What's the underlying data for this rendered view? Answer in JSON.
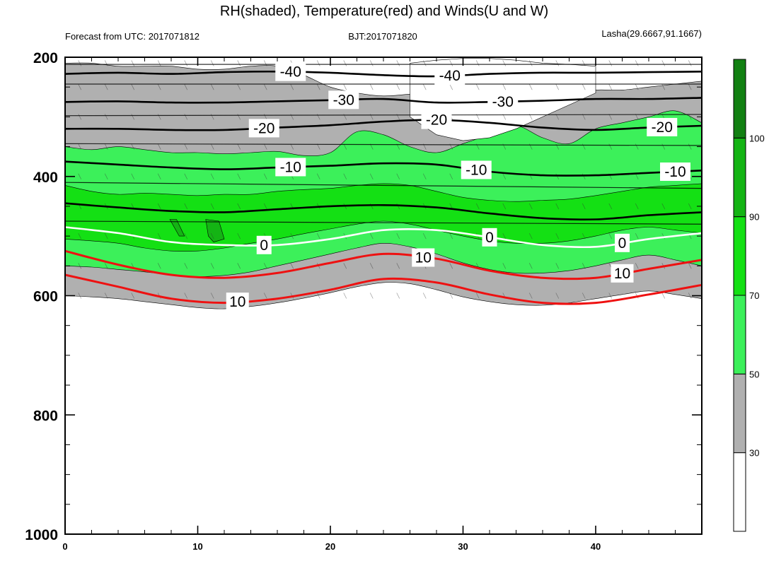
{
  "header": {
    "title": "RH(shaded), Temperature(red) and Winds(U and W)",
    "left": "Forecast from UTC: 2017071812",
    "center": "BJT:2017071820",
    "right": "Lasha(29.6667,91.1667)"
  },
  "colors": {
    "rh_lt30": "#ffffff",
    "rh_30_50": "#b0b0b0",
    "rh_50_70": "#3cf05a",
    "rh_70_90": "#14e014",
    "rh_90_100": "#14b414",
    "rh_gt100": "#128012",
    "temperature_warm": "#ee1111",
    "temperature_cold": "#000000",
    "freezing_line": "#ffffff"
  },
  "chart_data": {
    "type": "heatmap",
    "x_ticks": [
      "0",
      "10",
      "20",
      "30",
      "40"
    ],
    "y_ticks": [
      "200",
      "400",
      "600",
      "800",
      "1000"
    ],
    "xlim": [
      0,
      48
    ],
    "ylim": [
      1000,
      200
    ],
    "colorbar_labels": [
      "30",
      "50",
      "70",
      "90",
      "100"
    ],
    "colorbar_levels": [
      30,
      50,
      70,
      90,
      100
    ],
    "rh_regions": [
      {
        "class": "rh_70_90",
        "x": [
          0,
          2,
          4,
          6,
          8,
          10,
          12,
          14,
          16,
          18,
          20,
          22,
          24,
          26,
          28,
          30,
          32,
          34,
          36,
          38,
          40,
          42,
          44,
          46,
          48
        ],
        "top": [
          415,
          425,
          430,
          428,
          430,
          432,
          430,
          430,
          425,
          422,
          420,
          415,
          412,
          415,
          425,
          435,
          440,
          442,
          440,
          438,
          432,
          425,
          418,
          415,
          412
        ],
        "bottom": [
          505,
          508,
          512,
          520,
          525,
          525,
          520,
          512,
          505,
          496,
          488,
          480,
          475,
          480,
          490,
          500,
          508,
          512,
          512,
          508,
          500,
          490,
          485,
          490,
          495
        ]
      },
      {
        "class": "rh_50_70",
        "x": [
          0,
          2,
          4,
          6,
          8,
          10,
          12,
          14,
          16,
          18,
          20,
          22,
          24,
          26,
          28,
          30,
          32,
          34,
          36,
          38,
          40,
          42,
          44,
          46,
          48
        ],
        "top": [
          350,
          355,
          350,
          355,
          360,
          360,
          362,
          360,
          358,
          365,
          360,
          325,
          330,
          350,
          360,
          345,
          330,
          315,
          335,
          345,
          320,
          310,
          300,
          290,
          310
        ],
        "bottom": [
          550,
          552,
          556,
          560,
          565,
          568,
          566,
          560,
          550,
          540,
          530,
          520,
          512,
          518,
          530,
          545,
          556,
          562,
          562,
          558,
          550,
          540,
          532,
          540,
          550
        ]
      },
      {
        "class": "rh_30_50",
        "x": [
          0,
          2,
          4,
          6,
          8,
          10,
          12,
          14,
          16,
          18,
          20,
          22,
          24,
          26,
          28,
          30,
          32,
          34,
          36,
          38,
          40,
          42,
          44,
          46,
          48
        ],
        "top": [
          210,
          210,
          215,
          215,
          215,
          220,
          220,
          215,
          215,
          230,
          250,
          260,
          265,
          262,
          260,
          265,
          270,
          270,
          265,
          260,
          255,
          255,
          250,
          245,
          240
        ],
        "bottom": [
          600,
          602,
          605,
          610,
          615,
          620,
          622,
          618,
          612,
          604,
          595,
          585,
          578,
          580,
          590,
          602,
          610,
          615,
          616,
          612,
          605,
          598,
          592,
          598,
          605
        ]
      },
      {
        "class": "rh_lt30",
        "x": [
          26,
          28,
          30,
          32,
          34,
          36,
          38,
          40
        ],
        "top": [
          210,
          205,
          202,
          202,
          205,
          210,
          212,
          215
        ],
        "bottom": [
          300,
          330,
          340,
          335,
          320,
          300,
          280,
          260
        ]
      },
      {
        "class": "rh_90_100",
        "x": [
          10.5,
          11,
          12,
          11.5,
          10.5
        ],
        "top": [
          500,
          495,
          510,
          530,
          525
        ],
        "bottom": [
          500,
          495,
          510,
          530,
          525
        ]
      }
    ],
    "rh_cells_90_100": [
      {
        "x": [
          10.6,
          11.6,
          12.0,
          11.2,
          10.8
        ],
        "p": [
          472,
          475,
          505,
          510,
          500
        ]
      },
      {
        "x": [
          7.9,
          8.4,
          9.0,
          8.6
        ],
        "p": [
          472,
          472,
          500,
          500
        ]
      }
    ],
    "temperature_contours": [
      {
        "level": -40,
        "x": [
          0,
          4,
          8,
          12,
          16,
          20,
          24,
          28,
          32,
          36,
          40,
          44,
          48
        ],
        "p": [
          228,
          226,
          228,
          225,
          224,
          226,
          230,
          232,
          228,
          226,
          226,
          225,
          224
        ]
      },
      {
        "level": -30,
        "x": [
          0,
          4,
          8,
          12,
          16,
          20,
          24,
          28,
          32,
          36,
          40,
          44,
          48
        ],
        "p": [
          275,
          274,
          276,
          276,
          274,
          272,
          270,
          276,
          275,
          273,
          270,
          270,
          268
        ]
      },
      {
        "level": -20,
        "x": [
          0,
          4,
          8,
          12,
          16,
          20,
          24,
          28,
          32,
          36,
          40,
          44,
          48
        ],
        "p": [
          320,
          320,
          322,
          322,
          318,
          314,
          308,
          305,
          310,
          318,
          322,
          318,
          315
        ]
      },
      {
        "level": -10,
        "x": [
          0,
          4,
          8,
          12,
          16,
          20,
          24,
          28,
          32,
          36,
          40,
          44,
          48
        ],
        "p": [
          375,
          380,
          385,
          388,
          385,
          382,
          378,
          380,
          392,
          398,
          398,
          394,
          390
        ]
      },
      {
        "level": -10,
        "x": [
          0,
          4,
          8,
          12,
          16,
          20,
          24,
          28,
          32,
          36,
          40,
          44,
          48
        ],
        "p": [
          445,
          452,
          458,
          460,
          455,
          450,
          448,
          452,
          462,
          470,
          472,
          465,
          460
        ]
      },
      {
        "level": 0,
        "x": [
          0,
          4,
          8,
          12,
          16,
          20,
          24,
          28,
          32,
          36,
          40,
          44,
          48
        ],
        "p": [
          485,
          495,
          510,
          515,
          515,
          505,
          490,
          490,
          502,
          515,
          518,
          505,
          495
        ]
      },
      {
        "level": 10,
        "x": [
          0,
          4,
          8,
          12,
          16,
          20,
          24,
          28,
          32,
          36,
          40,
          44,
          48
        ],
        "p": [
          525,
          548,
          565,
          570,
          562,
          545,
          530,
          538,
          558,
          570,
          570,
          555,
          540
        ]
      },
      {
        "level": 10,
        "x": [
          0,
          4,
          8,
          12,
          16,
          20,
          24,
          28,
          32,
          36,
          40,
          44,
          48
        ],
        "p": [
          565,
          585,
          605,
          612,
          605,
          590,
          572,
          578,
          598,
          612,
          612,
          598,
          582
        ]
      }
    ],
    "contour_labels": [
      "-40",
      "-40",
      "-30",
      "-30",
      "-20",
      "-20",
      "-20",
      "-10",
      "-10",
      "-10",
      "0",
      "0",
      "0",
      "10",
      "10",
      "10"
    ]
  }
}
